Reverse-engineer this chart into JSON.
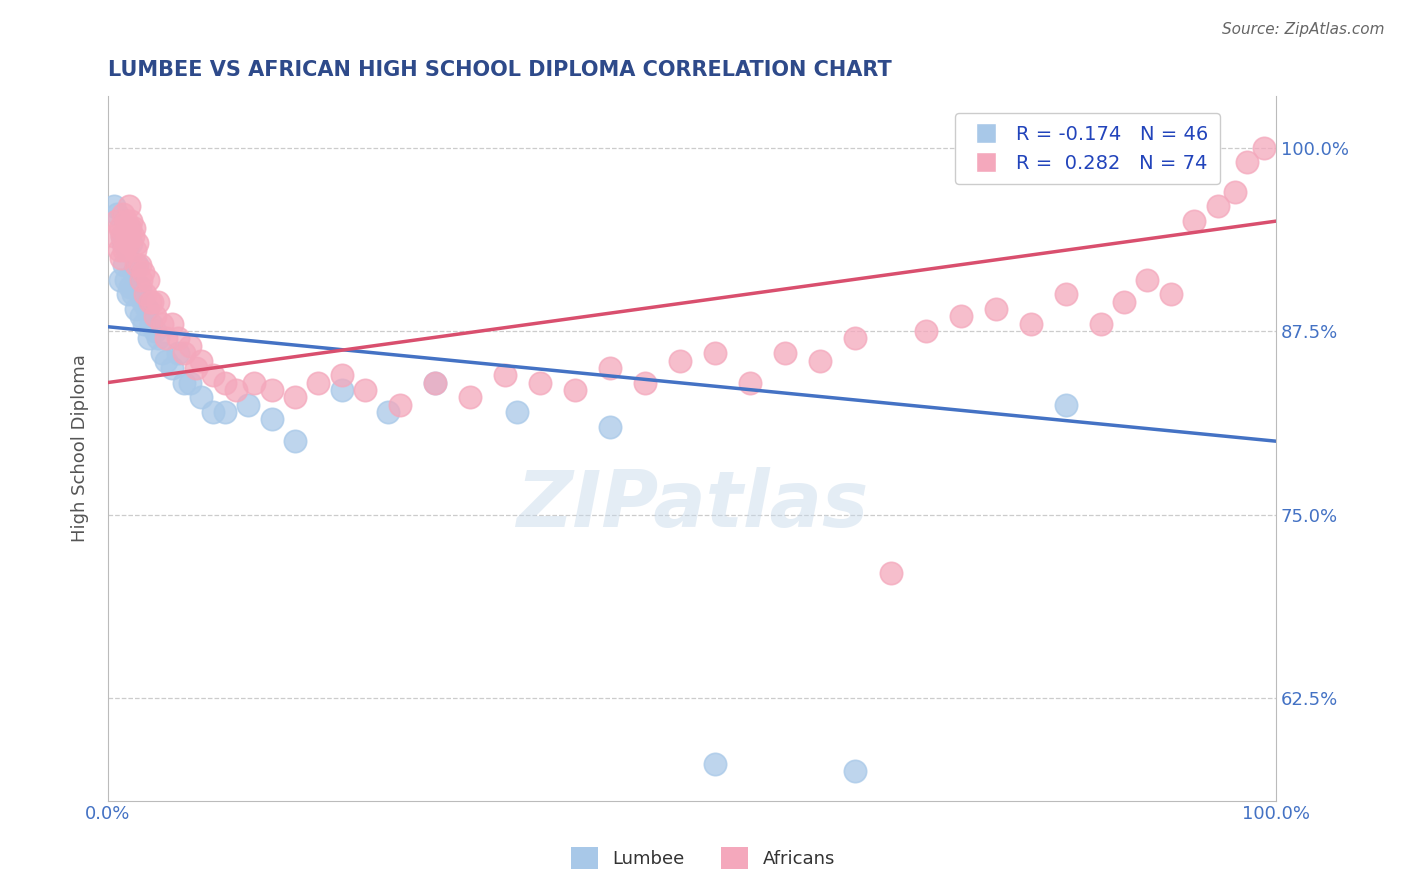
{
  "title": "LUMBEE VS AFRICAN HIGH SCHOOL DIPLOMA CORRELATION CHART",
  "source_text": "Source: ZipAtlas.com",
  "ylabel": "High School Diploma",
  "xlim": [
    0,
    1.0
  ],
  "ylim": [
    0.555,
    1.035
  ],
  "yticks": [
    0.625,
    0.75,
    0.875,
    1.0
  ],
  "ytick_labels": [
    "62.5%",
    "75.0%",
    "87.5%",
    "100.0%"
  ],
  "lumbee_R": -0.174,
  "lumbee_N": 46,
  "african_R": 0.282,
  "african_N": 74,
  "lumbee_color": "#a8c8e8",
  "african_color": "#f4a8bc",
  "lumbee_line_color": "#4472c4",
  "african_line_color": "#d94f6e",
  "watermark": "ZIPatlas",
  "background_color": "#ffffff",
  "grid_color": "#cccccc",
  "title_color": "#2e4a8a",
  "axis_label_color": "#555555",
  "tick_label_color": "#4472c4",
  "lumbee_line_x0": 0.0,
  "lumbee_line_y0": 0.878,
  "lumbee_line_x1": 1.0,
  "lumbee_line_y1": 0.8,
  "african_line_x0": 0.0,
  "african_line_y0": 0.84,
  "african_line_x1": 1.0,
  "african_line_y1": 0.95,
  "lumbee_x": [
    0.005,
    0.008,
    0.01,
    0.012,
    0.013,
    0.014,
    0.015,
    0.016,
    0.017,
    0.018,
    0.019,
    0.02,
    0.021,
    0.022,
    0.023,
    0.024,
    0.025,
    0.027,
    0.028,
    0.03,
    0.031,
    0.033,
    0.035,
    0.037,
    0.04,
    0.043,
    0.046,
    0.05,
    0.055,
    0.06,
    0.065,
    0.07,
    0.08,
    0.09,
    0.1,
    0.12,
    0.14,
    0.16,
    0.2,
    0.24,
    0.28,
    0.35,
    0.43,
    0.52,
    0.64,
    0.82
  ],
  "lumbee_y": [
    0.96,
    0.955,
    0.91,
    0.94,
    0.935,
    0.92,
    0.91,
    0.93,
    0.9,
    0.945,
    0.905,
    0.935,
    0.9,
    0.915,
    0.905,
    0.89,
    0.92,
    0.905,
    0.885,
    0.895,
    0.88,
    0.89,
    0.87,
    0.88,
    0.875,
    0.87,
    0.86,
    0.855,
    0.85,
    0.86,
    0.84,
    0.84,
    0.83,
    0.82,
    0.82,
    0.825,
    0.815,
    0.8,
    0.835,
    0.82,
    0.84,
    0.82,
    0.81,
    0.58,
    0.575,
    0.825
  ],
  "african_x": [
    0.005,
    0.007,
    0.009,
    0.01,
    0.011,
    0.012,
    0.013,
    0.014,
    0.015,
    0.016,
    0.017,
    0.018,
    0.019,
    0.02,
    0.021,
    0.022,
    0.023,
    0.024,
    0.025,
    0.027,
    0.028,
    0.03,
    0.032,
    0.034,
    0.036,
    0.038,
    0.04,
    0.043,
    0.046,
    0.05,
    0.055,
    0.06,
    0.065,
    0.07,
    0.075,
    0.08,
    0.09,
    0.1,
    0.11,
    0.125,
    0.14,
    0.16,
    0.18,
    0.2,
    0.22,
    0.25,
    0.28,
    0.31,
    0.34,
    0.37,
    0.4,
    0.43,
    0.46,
    0.49,
    0.52,
    0.55,
    0.58,
    0.61,
    0.64,
    0.67,
    0.7,
    0.73,
    0.76,
    0.79,
    0.82,
    0.85,
    0.87,
    0.89,
    0.91,
    0.93,
    0.95,
    0.965,
    0.975,
    0.99
  ],
  "african_y": [
    0.94,
    0.95,
    0.93,
    0.945,
    0.925,
    0.94,
    0.955,
    0.93,
    0.95,
    0.94,
    0.935,
    0.96,
    0.945,
    0.95,
    0.94,
    0.945,
    0.93,
    0.92,
    0.935,
    0.92,
    0.91,
    0.915,
    0.9,
    0.91,
    0.895,
    0.895,
    0.885,
    0.895,
    0.88,
    0.87,
    0.88,
    0.87,
    0.86,
    0.865,
    0.85,
    0.855,
    0.845,
    0.84,
    0.835,
    0.84,
    0.835,
    0.83,
    0.84,
    0.845,
    0.835,
    0.825,
    0.84,
    0.83,
    0.845,
    0.84,
    0.835,
    0.85,
    0.84,
    0.855,
    0.86,
    0.84,
    0.86,
    0.855,
    0.87,
    0.71,
    0.875,
    0.885,
    0.89,
    0.88,
    0.9,
    0.88,
    0.895,
    0.91,
    0.9,
    0.95,
    0.96,
    0.97,
    0.99,
    1.0
  ]
}
